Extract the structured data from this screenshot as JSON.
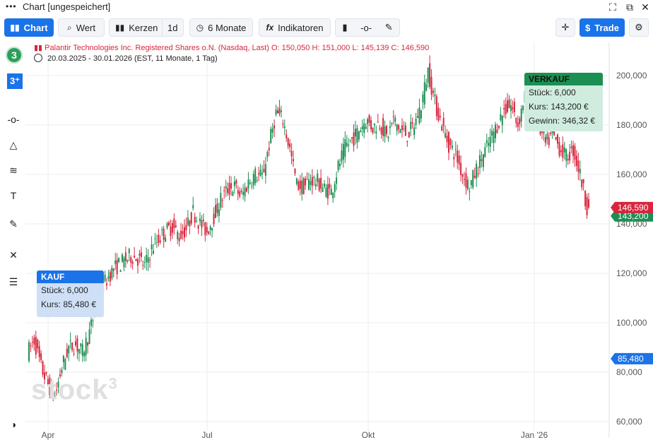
{
  "window": {
    "menu_icon": "more-dots-icon",
    "title": "Chart [ungespeichert]"
  },
  "toolbar": {
    "chart_label": "Chart",
    "wert_label": "Wert",
    "kerzen_label": "Kerzen",
    "interval_label": "1d",
    "period_label": "6 Monate",
    "indikatoren_label": "Indikatoren",
    "trade_label": "Trade"
  },
  "instrument": {
    "name": "Palantir Technologies Inc. Registered Shares o.N. (Nasdaq, Last)",
    "ohlc": "O: 150,050  H: 151,000  L: 145,139  C: 146,590",
    "range": "20.03.2025 - 30.01.2026",
    "meta": "(EST, 11 Monate, 1 Tag)"
  },
  "kauf": {
    "header": "KAUF",
    "stueck": "Stück: 6,000",
    "kurs": "Kurs: 85,480 €"
  },
  "verkauf": {
    "header": "VERKAUF",
    "stueck": "Stück: 6,000",
    "kurs": "Kurs: 143,200 €",
    "gewinn": "Gewinn: 346,32 €"
  },
  "watermark": "stock",
  "watermark_sup": "3",
  "colors": {
    "up": "#1c8f52",
    "down": "#d7263d",
    "accent": "#1a73e8"
  },
  "chart_data": {
    "type": "candlestick",
    "x_ticks": [
      "Apr",
      "Jul",
      "Okt",
      "Jan '26"
    ],
    "y_ticks": [
      "60,000",
      "80,000",
      "100,000",
      "120,000",
      "140,000",
      "160,000",
      "180,000",
      "200,000"
    ],
    "ylim": [
      58000,
      208000
    ],
    "grid": true,
    "last_price_label": "146,590",
    "last_price": 146590,
    "sell_price_label": "143,200",
    "sell_price": 143200,
    "buy_price_label": "85,480",
    "buy_price": 85480,
    "trend_points": [
      [
        0,
        88
      ],
      [
        4,
        93
      ],
      [
        8,
        82
      ],
      [
        12,
        75
      ],
      [
        16,
        70
      ],
      [
        20,
        82
      ],
      [
        24,
        90
      ],
      [
        28,
        91
      ],
      [
        32,
        88
      ],
      [
        36,
        96
      ],
      [
        40,
        107
      ],
      [
        44,
        115
      ],
      [
        48,
        120
      ],
      [
        52,
        123
      ],
      [
        56,
        125
      ],
      [
        60,
        127
      ],
      [
        64,
        126
      ],
      [
        68,
        123
      ],
      [
        72,
        130
      ],
      [
        76,
        134
      ],
      [
        80,
        137
      ],
      [
        84,
        139
      ],
      [
        88,
        135
      ],
      [
        92,
        138
      ],
      [
        96,
        145
      ],
      [
        100,
        140
      ],
      [
        104,
        137
      ],
      [
        108,
        143
      ],
      [
        112,
        150
      ],
      [
        116,
        154
      ],
      [
        120,
        155
      ],
      [
        124,
        151
      ],
      [
        128,
        157
      ],
      [
        132,
        160
      ],
      [
        136,
        159
      ],
      [
        140,
        172
      ],
      [
        144,
        185
      ],
      [
        148,
        182
      ],
      [
        152,
        170
      ],
      [
        156,
        156
      ],
      [
        160,
        155
      ],
      [
        164,
        158
      ],
      [
        168,
        157
      ],
      [
        172,
        154
      ],
      [
        176,
        153
      ],
      [
        180,
        163
      ],
      [
        184,
        171
      ],
      [
        188,
        174
      ],
      [
        192,
        178
      ],
      [
        196,
        182
      ],
      [
        200,
        179
      ],
      [
        204,
        181
      ],
      [
        208,
        175
      ],
      [
        212,
        182
      ],
      [
        216,
        178
      ],
      [
        220,
        176
      ],
      [
        224,
        180
      ],
      [
        228,
        188
      ],
      [
        232,
        202
      ],
      [
        236,
        189
      ],
      [
        240,
        180
      ],
      [
        244,
        172
      ],
      [
        248,
        168
      ],
      [
        252,
        160
      ],
      [
        256,
        155
      ],
      [
        260,
        162
      ],
      [
        264,
        168
      ],
      [
        268,
        174
      ],
      [
        272,
        180
      ],
      [
        276,
        186
      ],
      [
        280,
        188
      ],
      [
        284,
        180
      ],
      [
        288,
        192
      ],
      [
        292,
        194
      ],
      [
        296,
        180
      ],
      [
        300,
        172
      ],
      [
        304,
        176
      ],
      [
        308,
        171
      ],
      [
        312,
        167
      ],
      [
        316,
        170
      ],
      [
        320,
        160
      ],
      [
        324,
        147
      ]
    ],
    "last_index": 324
  }
}
